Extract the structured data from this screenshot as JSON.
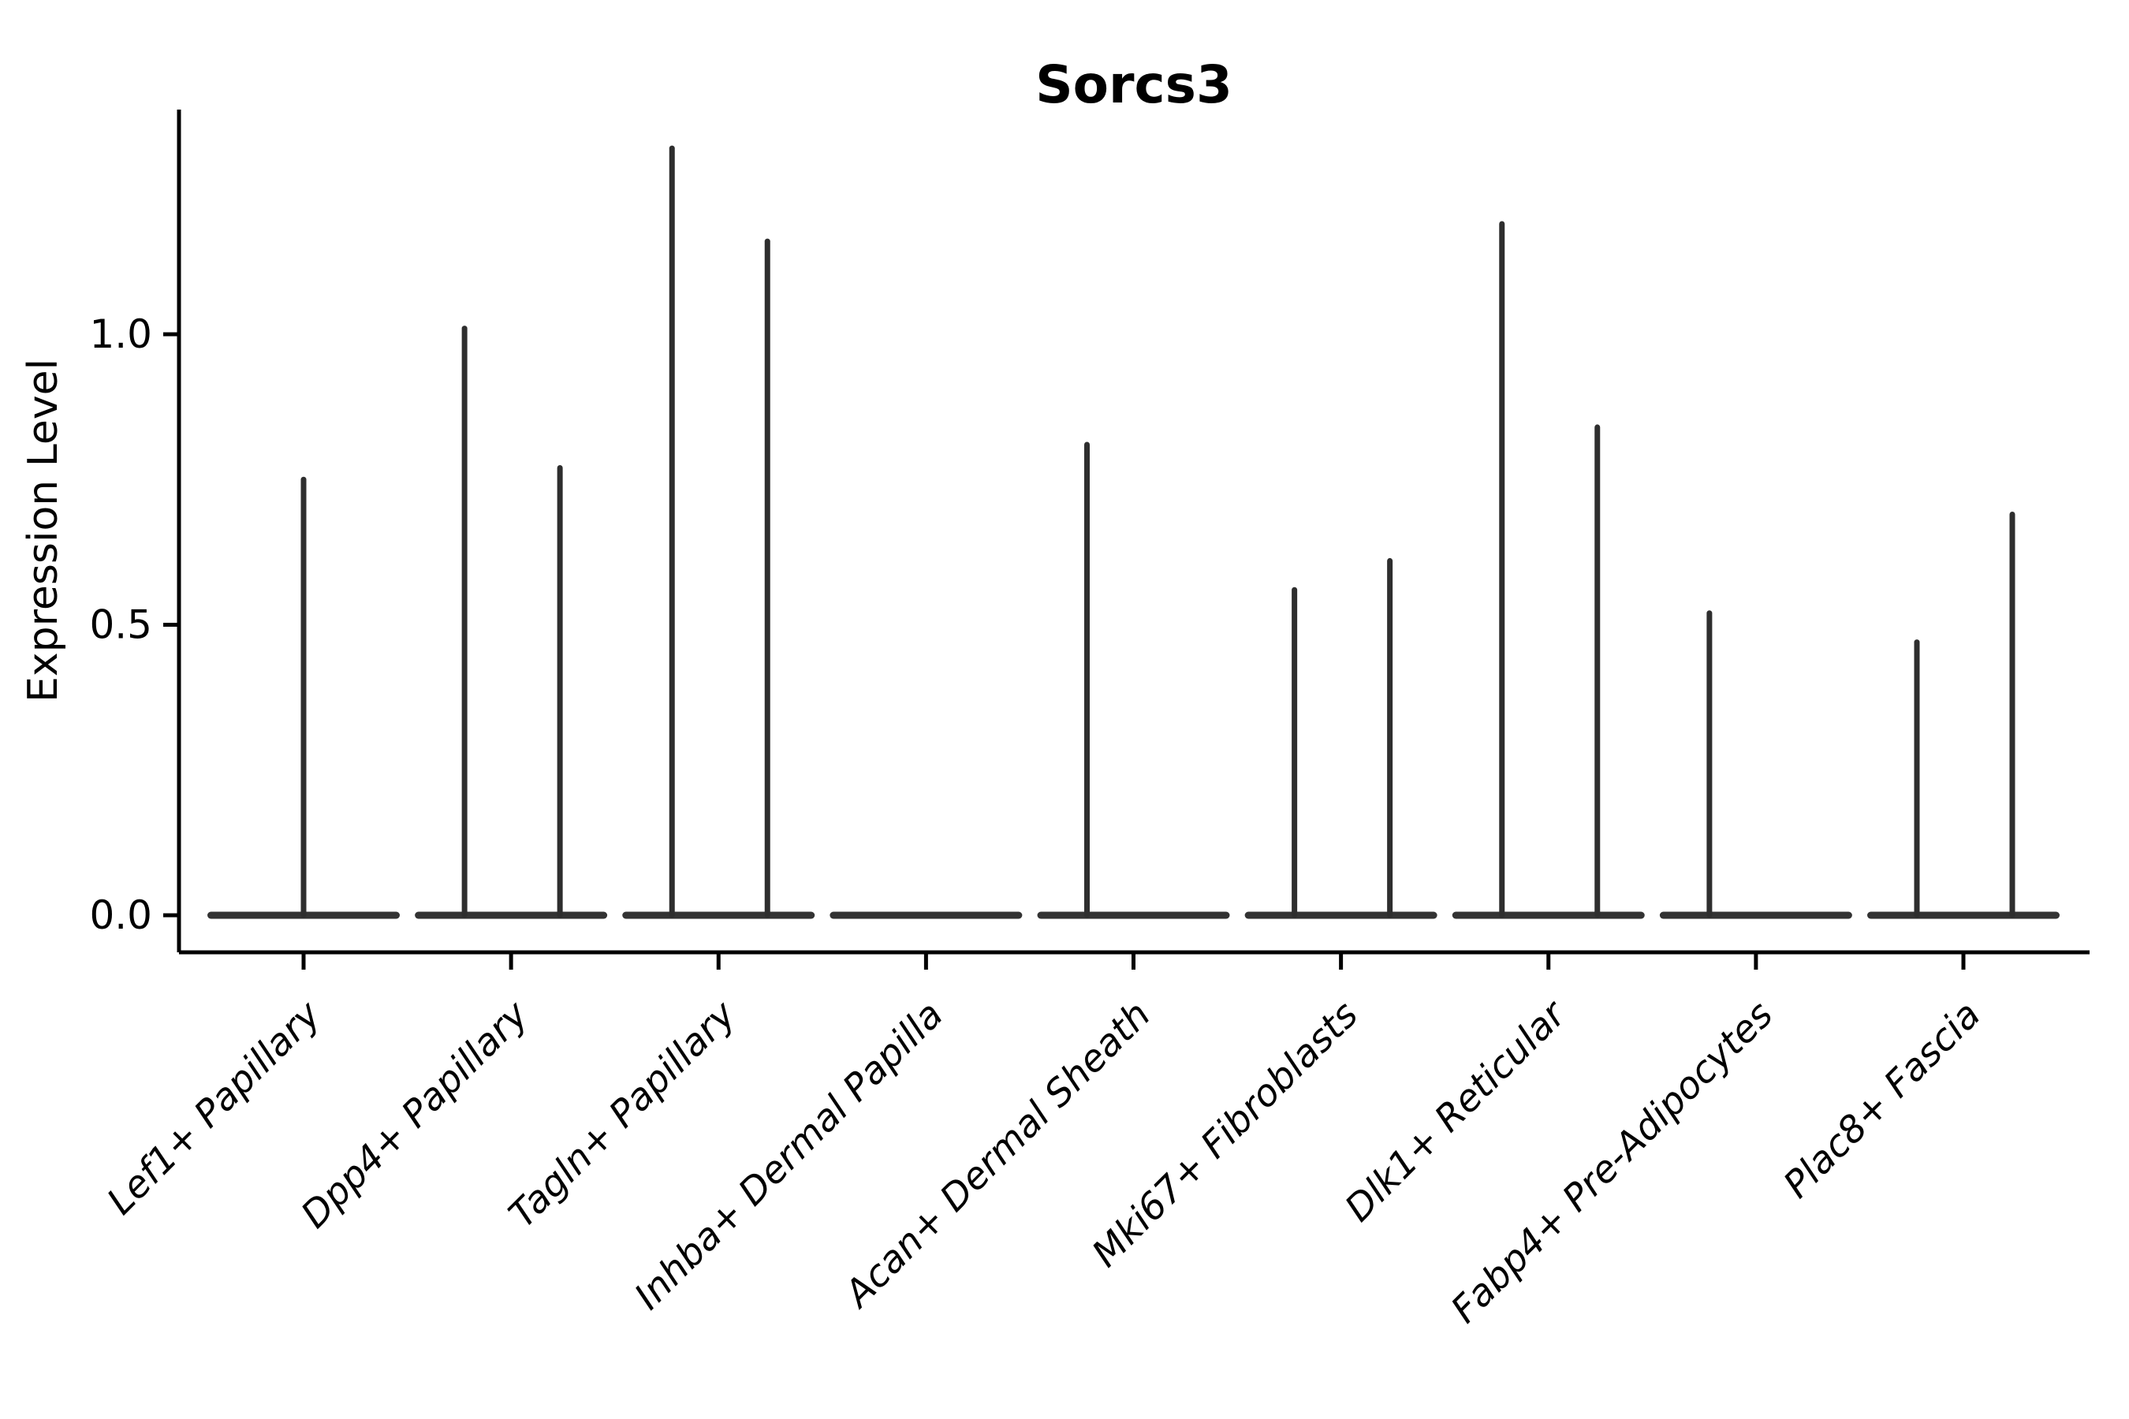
{
  "title": "Sorcs3",
  "colors": {
    "background": "#ffffff",
    "axis": "#000000",
    "text": "#000000",
    "violin": "#333333",
    "spike": "#2e2e2e"
  },
  "y_axis": {
    "label": "Expression Level",
    "tick_labels": [
      "0.0",
      "0.5",
      "1.0"
    ]
  },
  "chart_data": {
    "type": "violin",
    "title": "Sorcs3",
    "xlabel": "",
    "ylabel": "Expression Level",
    "ylim": [
      -0.06,
      1.39
    ],
    "yticks": [
      0.0,
      0.5,
      1.0
    ],
    "ytick_labels": [
      "0.0",
      "0.5",
      "1.0"
    ],
    "grid": false,
    "legend_position": "none",
    "x_tick_rotation": 45,
    "categories": [
      "Lef1+ Papillary",
      "Dpp4+ Papillary",
      "Tagln+ Papillary",
      "Inhba+ Dermal Papilla",
      "Acan+ Dermal Sheath",
      "Mki67+ Fibroblasts",
      "Dlk1+ Reticular",
      "Fabp4+ Pre-Adipocytes",
      "Plac8+ Fascia"
    ],
    "violins": [
      {
        "category": "Lef1+ Papillary",
        "spikes": [
          {
            "group": "center",
            "max": 0.75
          }
        ]
      },
      {
        "category": "Dpp4+ Papillary",
        "spikes": [
          {
            "group": "left",
            "max": 1.01
          },
          {
            "group": "right",
            "max": 0.77
          }
        ]
      },
      {
        "category": "Tagln+ Papillary",
        "spikes": [
          {
            "group": "left",
            "max": 1.32
          },
          {
            "group": "right",
            "max": 1.16
          }
        ]
      },
      {
        "category": "Inhba+ Dermal Papilla",
        "spikes": []
      },
      {
        "category": "Acan+ Dermal Sheath",
        "spikes": [
          {
            "group": "left",
            "max": 0.81
          }
        ]
      },
      {
        "category": "Mki67+ Fibroblasts",
        "spikes": [
          {
            "group": "left",
            "max": 0.56
          },
          {
            "group": "right",
            "max": 0.61
          }
        ]
      },
      {
        "category": "Dlk1+ Reticular",
        "spikes": [
          {
            "group": "left",
            "max": 1.19
          },
          {
            "group": "right",
            "max": 0.84
          }
        ]
      },
      {
        "category": "Fabp4+ Pre-Adipocytes",
        "spikes": [
          {
            "group": "left",
            "max": 0.52
          }
        ]
      },
      {
        "category": "Plac8+ Fascia",
        "spikes": [
          {
            "group": "left",
            "max": 0.47
          },
          {
            "group": "right",
            "max": 0.69
          }
        ]
      }
    ]
  }
}
